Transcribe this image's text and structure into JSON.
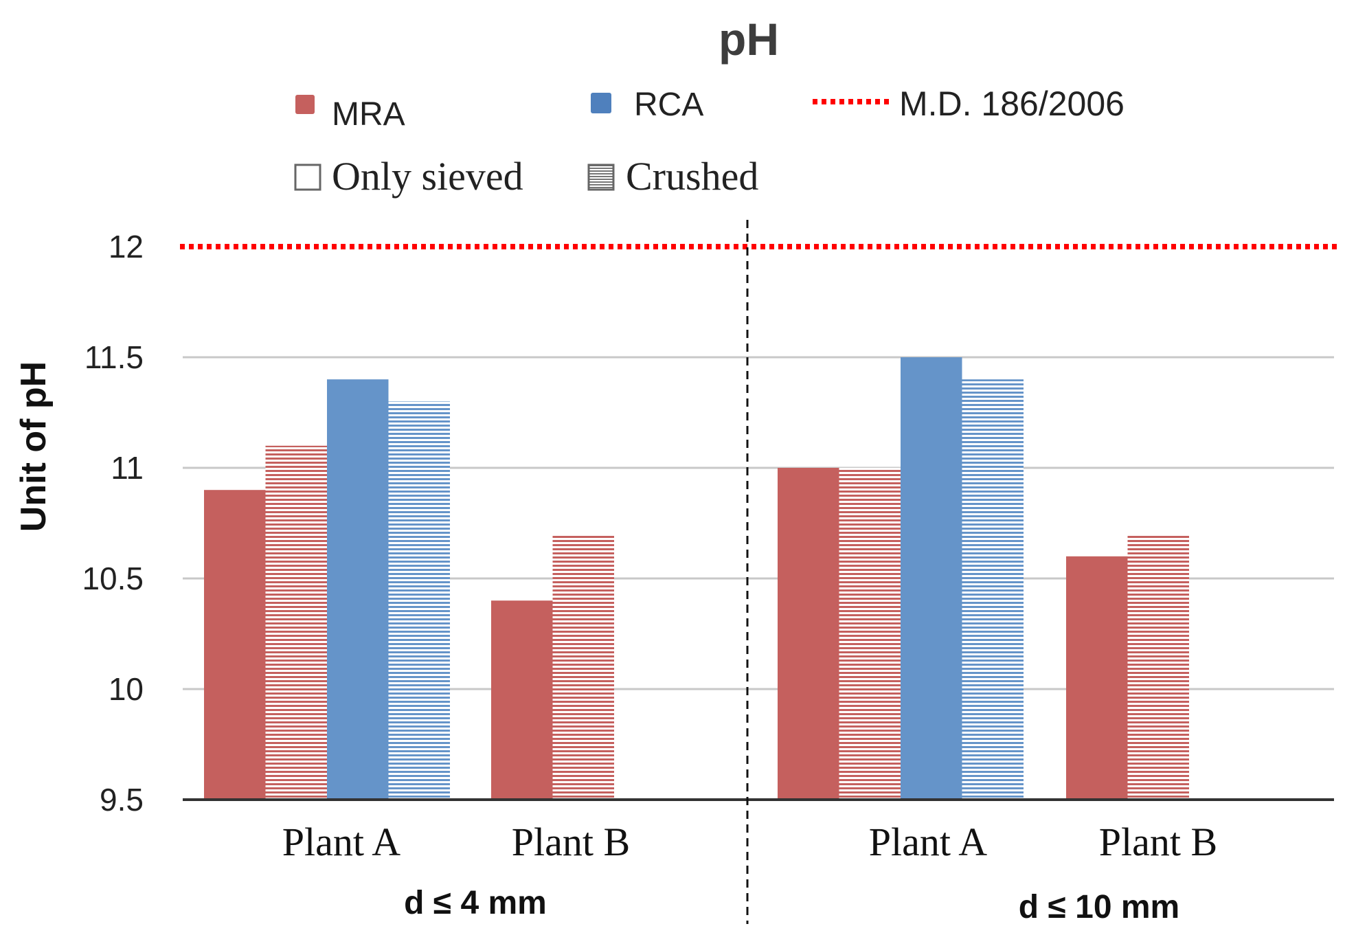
{
  "chart_data": {
    "type": "bar",
    "title": "pH",
    "ylabel": "Unit of pH",
    "ylim": [
      9.5,
      12
    ],
    "yticks": [
      "9.5",
      "10",
      "10.5",
      "11",
      "11.5",
      "12"
    ],
    "grid": true,
    "legend": {
      "placement": "top",
      "items": [
        {
          "label": "MRA",
          "type": "color",
          "color": "#C5605E"
        },
        {
          "label": "RCA",
          "type": "color",
          "color": "#6594C9"
        },
        {
          "label": "M.D. 186/2006",
          "type": "dotted-line",
          "color": "#FF0000"
        },
        {
          "label": "Only sieved",
          "type": "empty-box"
        },
        {
          "label": "Crushed",
          "type": "hatched-box"
        }
      ]
    },
    "reference_line": {
      "label": "M.D. 186/2006",
      "value": 12,
      "color": "#FF0000"
    },
    "groups": [
      {
        "label": "d ≤ 4 mm",
        "categories": [
          {
            "label": "Plant A",
            "bars": [
              {
                "material": "MRA",
                "treatment": "Only sieved",
                "value": 10.9
              },
              {
                "material": "MRA",
                "treatment": "Crushed",
                "value": 11.1
              },
              {
                "material": "RCA",
                "treatment": "Only sieved",
                "value": 11.4
              },
              {
                "material": "RCA",
                "treatment": "Crushed",
                "value": 11.3
              }
            ]
          },
          {
            "label": "Plant B",
            "bars": [
              {
                "material": "MRA",
                "treatment": "Only sieved",
                "value": 10.4
              },
              {
                "material": "MRA",
                "treatment": "Crushed",
                "value": 10.7
              }
            ]
          }
        ]
      },
      {
        "label": "d ≤ 10 mm",
        "categories": [
          {
            "label": "Plant A",
            "bars": [
              {
                "material": "MRA",
                "treatment": "Only sieved",
                "value": 11.0
              },
              {
                "material": "MRA",
                "treatment": "Crushed",
                "value": 11.0
              },
              {
                "material": "RCA",
                "treatment": "Only sieved",
                "value": 11.5
              },
              {
                "material": "RCA",
                "treatment": "Crushed",
                "value": 11.4
              }
            ]
          },
          {
            "label": "Plant B",
            "bars": [
              {
                "material": "MRA",
                "treatment": "Only sieved",
                "value": 10.6
              },
              {
                "material": "MRA",
                "treatment": "Crushed",
                "value": 10.7
              }
            ]
          }
        ]
      }
    ]
  }
}
